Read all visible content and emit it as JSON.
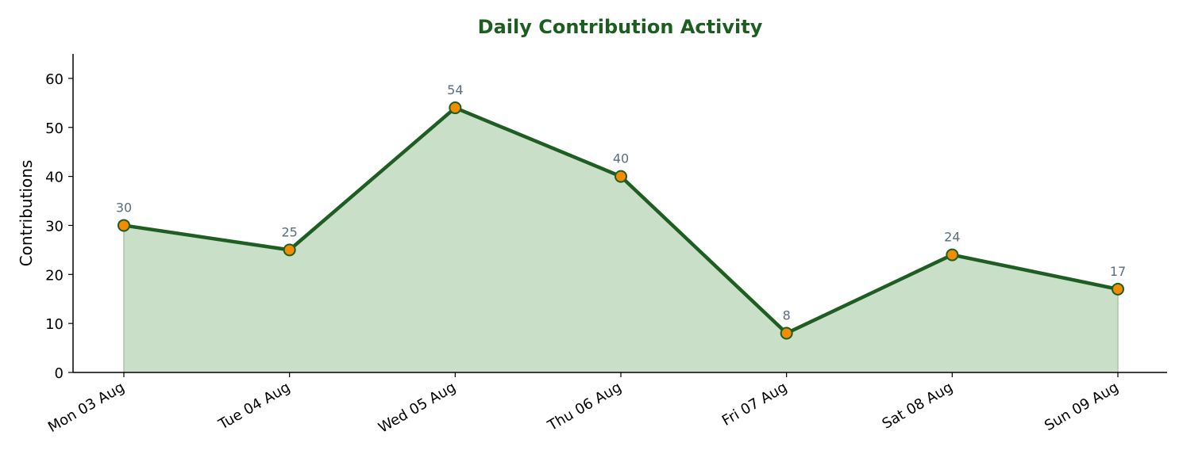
{
  "chart_data": {
    "type": "area",
    "title": "Daily Contribution Activity",
    "xlabel": "",
    "ylabel": "Contributions",
    "categories": [
      "Mon 03 Aug",
      "Tue 04 Aug",
      "Wed 05 Aug",
      "Thu 06 Aug",
      "Fri 07 Aug",
      "Sat 08 Aug",
      "Sun 09 Aug"
    ],
    "values": [
      30,
      25,
      54,
      40,
      8,
      24,
      17
    ],
    "ylim": [
      0,
      65
    ],
    "yticks": [
      0,
      10,
      20,
      30,
      40,
      50,
      60
    ],
    "grid": false,
    "legend": "none",
    "markers": true,
    "data_labels": true
  },
  "colors": {
    "title": "#1b5e20",
    "line": "#1e5e22",
    "area_fill": "#cadfc8",
    "marker_fill": "#f28c00",
    "marker_edge": "#1e5e22",
    "data_label": "#5a6e7e",
    "axis": "#000000"
  }
}
